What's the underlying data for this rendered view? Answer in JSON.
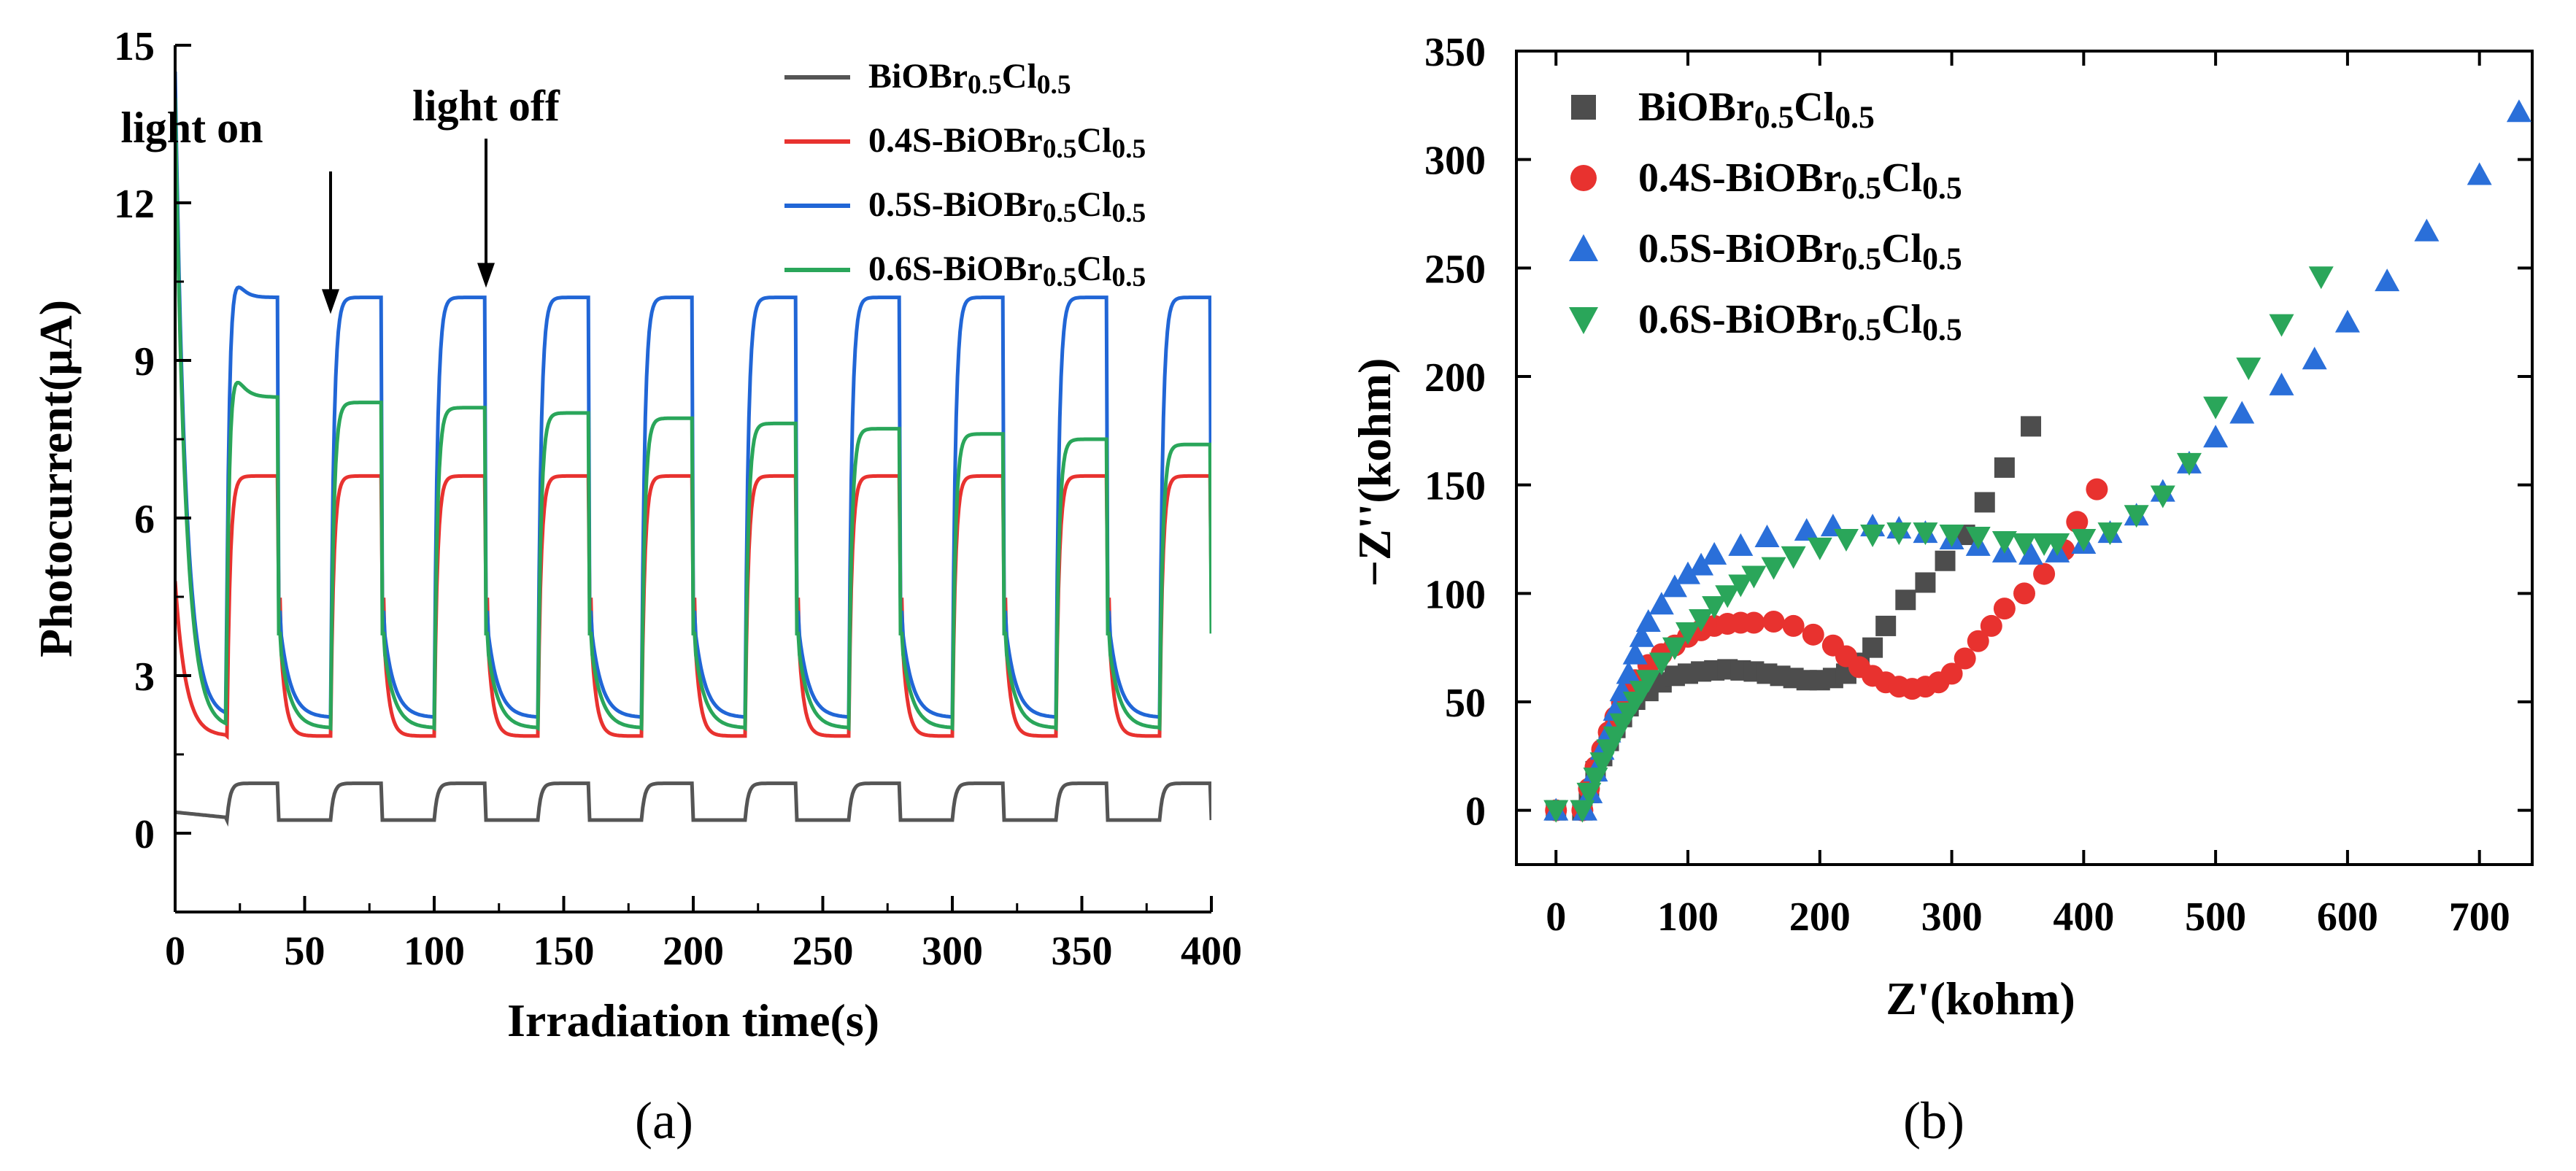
{
  "chart_data": [
    {
      "type": "line",
      "caption": "(a)",
      "xlabel": "Irradiation time(s)",
      "ylabel": "Photocurrent(μA)",
      "xlim": [
        0,
        400
      ],
      "ylim": [
        -1.5,
        15
      ],
      "xticks": [
        0,
        50,
        100,
        150,
        200,
        250,
        300,
        350,
        400
      ],
      "yticks": [
        0,
        3,
        6,
        9,
        12,
        15
      ],
      "light_period_s": 40,
      "light_on_offset_s": 20,
      "annotations": [
        {
          "text": "light on",
          "x": 60,
          "y": 9.8
        },
        {
          "text": "light off",
          "x": 120,
          "y": 10.3
        }
      ],
      "series": [
        {
          "label": {
            "main": "BiOBr",
            "sub1": "0.5",
            "mid": "Cl",
            "sub2": "0.5"
          },
          "color": "#555555",
          "start": 0.4,
          "dark": 0.25,
          "light": 0.95,
          "drift": 0.0,
          "spike": 0.0,
          "tau_dark": 2
        },
        {
          "label": {
            "main": "0.4S-BiOBr",
            "sub1": "0.5",
            "mid": "Cl",
            "sub2": "0.5"
          },
          "color": "#e8322f",
          "start": 4.8,
          "dark": 1.85,
          "light": 6.8,
          "drift": 0.0,
          "spike": 2.6,
          "tau_dark": 2
        },
        {
          "label": {
            "main": "0.5S-BiOBr",
            "sub1": "0.5",
            "mid": "Cl",
            "sub2": "0.5"
          },
          "color": "#2166d6",
          "start": 14.5,
          "dark": 2.2,
          "light": 10.2,
          "drift": 0.0,
          "spike": 2.0,
          "tau_dark": 4
        },
        {
          "label": {
            "main": "0.6S-BiOBr",
            "sub1": "0.5",
            "mid": "Cl",
            "sub2": "0.5"
          },
          "color": "#2aa65a",
          "start": 14.0,
          "dark": 2.0,
          "light": 8.3,
          "drift": -0.9,
          "spike": 1.8,
          "tau_dark": 4
        }
      ]
    },
    {
      "type": "scatter",
      "caption": "(b)",
      "xlabel": "Z'(kohm)",
      "ylabel": "−Z''(kohm)",
      "xlim": [
        -30,
        740
      ],
      "ylim": [
        -25,
        350
      ],
      "xticks": [
        0,
        100,
        200,
        300,
        400,
        500,
        600,
        700
      ],
      "yticks": [
        0,
        50,
        100,
        150,
        200,
        250,
        300,
        350
      ],
      "series": [
        {
          "label": {
            "main": "BiOBr",
            "sub1": "0.5",
            "mid": "Cl",
            "sub2": "0.5"
          },
          "color": "#4d4d4d",
          "marker": "square",
          "points": [
            [
              0,
              0
            ],
            [
              20,
              0
            ],
            [
              25,
              8
            ],
            [
              30,
              18
            ],
            [
              35,
              25
            ],
            [
              40,
              32
            ],
            [
              45,
              38
            ],
            [
              50,
              43
            ],
            [
              55,
              48
            ],
            [
              60,
              51
            ],
            [
              70,
              55
            ],
            [
              80,
              59
            ],
            [
              90,
              62
            ],
            [
              100,
              63
            ],
            [
              110,
              64
            ],
            [
              120,
              64.5
            ],
            [
              130,
              65
            ],
            [
              140,
              64.5
            ],
            [
              150,
              64
            ],
            [
              160,
              63
            ],
            [
              170,
              62
            ],
            [
              180,
              61
            ],
            [
              190,
              60
            ],
            [
              200,
              60
            ],
            [
              210,
              61
            ],
            [
              220,
              63
            ],
            [
              230,
              68
            ],
            [
              240,
              75
            ],
            [
              250,
              85
            ],
            [
              265,
              97
            ],
            [
              280,
              105
            ],
            [
              295,
              115
            ],
            [
              310,
              127
            ],
            [
              325,
              142
            ],
            [
              340,
              158
            ],
            [
              360,
              177
            ]
          ]
        },
        {
          "label": {
            "main": "0.4S-BiOBr",
            "sub1": "0.5",
            "mid": "Cl",
            "sub2": "0.5"
          },
          "color": "#e8322f",
          "marker": "circle",
          "points": [
            [
              0,
              0
            ],
            [
              20,
              0
            ],
            [
              25,
              10
            ],
            [
              30,
              20
            ],
            [
              35,
              28
            ],
            [
              40,
              36
            ],
            [
              45,
              43
            ],
            [
              50,
              50
            ],
            [
              55,
              55
            ],
            [
              60,
              60
            ],
            [
              70,
              67
            ],
            [
              80,
              72
            ],
            [
              90,
              76
            ],
            [
              100,
              80
            ],
            [
              110,
              83
            ],
            [
              120,
              85
            ],
            [
              130,
              86
            ],
            [
              140,
              86.5
            ],
            [
              150,
              86.5
            ],
            [
              165,
              87
            ],
            [
              180,
              85
            ],
            [
              195,
              81
            ],
            [
              210,
              76
            ],
            [
              220,
              71
            ],
            [
              230,
              66
            ],
            [
              240,
              62
            ],
            [
              250,
              59
            ],
            [
              260,
              57
            ],
            [
              270,
              56
            ],
            [
              280,
              57
            ],
            [
              290,
              59
            ],
            [
              300,
              63
            ],
            [
              310,
              70
            ],
            [
              320,
              78
            ],
            [
              330,
              85
            ],
            [
              340,
              93
            ],
            [
              355,
              100
            ],
            [
              370,
              109
            ],
            [
              385,
              120
            ],
            [
              395,
              133
            ],
            [
              410,
              148
            ]
          ]
        },
        {
          "label": {
            "main": "0.5S-BiOBr",
            "sub1": "0.5",
            "mid": "Cl",
            "sub2": "0.5"
          },
          "color": "#2a6fd9",
          "marker": "triangle-up",
          "points": [
            [
              0,
              0
            ],
            [
              22,
              0
            ],
            [
              26,
              8
            ],
            [
              30,
              18
            ],
            [
              35,
              28
            ],
            [
              40,
              36
            ],
            [
              45,
              46
            ],
            [
              50,
              55
            ],
            [
              55,
              63
            ],
            [
              60,
              72
            ],
            [
              65,
              80
            ],
            [
              70,
              87
            ],
            [
              80,
              95
            ],
            [
              90,
              103
            ],
            [
              100,
              109
            ],
            [
              110,
              113
            ],
            [
              120,
              118
            ],
            [
              140,
              122
            ],
            [
              160,
              126
            ],
            [
              190,
              129
            ],
            [
              210,
              131
            ],
            [
              240,
              131
            ],
            [
              260,
              130
            ],
            [
              280,
              128
            ],
            [
              300,
              125
            ],
            [
              320,
              122
            ],
            [
              340,
              119
            ],
            [
              360,
              118
            ],
            [
              380,
              119
            ],
            [
              400,
              123
            ],
            [
              420,
              128
            ],
            [
              440,
              136
            ],
            [
              460,
              147
            ],
            [
              480,
              160
            ],
            [
              500,
              172
            ],
            [
              520,
              183
            ],
            [
              550,
              196
            ],
            [
              575,
              208
            ],
            [
              600,
              225
            ],
            [
              630,
              244
            ],
            [
              660,
              267
            ],
            [
              700,
              293
            ],
            [
              730,
              322
            ]
          ]
        },
        {
          "label": {
            "main": "0.6S-BiOBr",
            "sub1": "0.5",
            "mid": "Cl",
            "sub2": "0.5"
          },
          "color": "#2aa65a",
          "marker": "triangle-down",
          "points": [
            [
              0,
              0
            ],
            [
              20,
              0
            ],
            [
              25,
              8
            ],
            [
              30,
              15
            ],
            [
              35,
              22
            ],
            [
              40,
              28
            ],
            [
              45,
              34
            ],
            [
              50,
              40
            ],
            [
              55,
              45
            ],
            [
              60,
              50
            ],
            [
              65,
              55
            ],
            [
              70,
              60
            ],
            [
              80,
              68
            ],
            [
              90,
              75
            ],
            [
              100,
              82
            ],
            [
              110,
              88
            ],
            [
              120,
              94
            ],
            [
              130,
              99
            ],
            [
              140,
              104
            ],
            [
              150,
              108
            ],
            [
              165,
              112
            ],
            [
              180,
              117
            ],
            [
              200,
              121
            ],
            [
              220,
              125
            ],
            [
              240,
              127
            ],
            [
              260,
              128
            ],
            [
              280,
              128
            ],
            [
              300,
              127
            ],
            [
              320,
              126
            ],
            [
              340,
              124
            ],
            [
              355,
              123
            ],
            [
              370,
              123
            ],
            [
              380,
              123
            ],
            [
              400,
              125
            ],
            [
              420,
              128
            ],
            [
              440,
              136
            ],
            [
              460,
              145
            ],
            [
              480,
              160
            ],
            [
              500,
              186
            ],
            [
              525,
              204
            ],
            [
              550,
              224
            ],
            [
              580,
              246
            ]
          ]
        }
      ]
    }
  ]
}
